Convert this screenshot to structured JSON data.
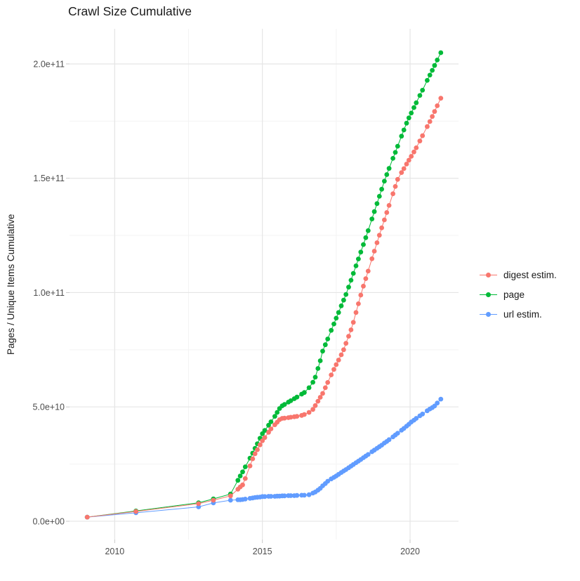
{
  "chart_data": {
    "type": "line",
    "title": "Crawl Size Cumulative",
    "xlabel": "",
    "ylabel": "Pages / Unique Items Cumulative",
    "legend_position": "right",
    "grid": true,
    "marker": "circle",
    "xlim": [
      2008.47,
      2021.64
    ],
    "ylim": [
      -8000000000.0,
      215350000000.0
    ],
    "x_major_ticks": [
      {
        "value": 2010,
        "label": "2010"
      },
      {
        "value": 2015,
        "label": "2015"
      },
      {
        "value": 2020,
        "label": "2020"
      }
    ],
    "x_minor_ticks": [
      2012.5,
      2017.5
    ],
    "y_major_ticks": [
      {
        "value": 0,
        "label": "0.0e+00"
      },
      {
        "value": 50000000000.0,
        "label": "5.0e+10"
      },
      {
        "value": 100000000000.0,
        "label": "1.0e+11"
      },
      {
        "value": 150000000000.0,
        "label": "1.5e+11"
      },
      {
        "value": 200000000000.0,
        "label": "2.0e+11"
      }
    ],
    "y_minor_ticks": [
      25000000000.0,
      75000000000.0,
      125000000000.0,
      175000000000.0
    ],
    "x_unit": "year (crawl date)",
    "y_unit": "cumulative count",
    "x": [
      2009.07,
      2010.72,
      2012.84,
      2013.34,
      2013.92,
      2014.17,
      2014.25,
      2014.33,
      2014.42,
      2014.58,
      2014.67,
      2014.75,
      2014.83,
      2014.92,
      2015.0,
      2015.08,
      2015.21,
      2015.29,
      2015.42,
      2015.5,
      2015.58,
      2015.67,
      2015.75,
      2015.88,
      2015.96,
      2016.08,
      2016.17,
      2016.33,
      2016.42,
      2016.58,
      2016.71,
      2016.79,
      2016.88,
      2016.96,
      2017.04,
      2017.13,
      2017.21,
      2017.33,
      2017.42,
      2017.5,
      2017.58,
      2017.67,
      2017.75,
      2017.83,
      2017.92,
      2018.0,
      2018.08,
      2018.17,
      2018.25,
      2018.33,
      2018.42,
      2018.5,
      2018.58,
      2018.71,
      2018.79,
      2018.88,
      2018.96,
      2019.04,
      2019.13,
      2019.21,
      2019.29,
      2019.42,
      2019.5,
      2019.58,
      2019.71,
      2019.79,
      2019.88,
      2019.96,
      2020.04,
      2020.13,
      2020.21,
      2020.33,
      2020.42,
      2020.58,
      2020.67,
      2020.75,
      2020.83,
      2020.92,
      2021.04
    ],
    "series": [
      {
        "name": "digest estim.",
        "color": "#F8766D",
        "values": [
          1800000000.0,
          4300000000.0,
          7700000000.0,
          9200000000.0,
          11100000000.0,
          14000000000.0,
          15000000000.0,
          15900000000.0,
          18700000000.0,
          24200000000.0,
          27300000000.0,
          29500000000.0,
          31300000000.0,
          33400000000.0,
          35200000000.0,
          36600000000.0,
          38900000000.0,
          40400000000.0,
          42200000000.0,
          43300000000.0,
          44400000000.0,
          45000000000.0,
          45100000000.0,
          45300000000.0,
          45500000000.0,
          45700000000.0,
          45900000000.0,
          46300000000.0,
          46700000000.0,
          47600000000.0,
          48900000000.0,
          50600000000.0,
          52500000000.0,
          54200000000.0,
          55900000000.0,
          58400000000.0,
          60700000000.0,
          64000000000.0,
          66400000000.0,
          68500000000.0,
          70500000000.0,
          72800000000.0,
          75000000000.0,
          77800000000.0,
          80900000000.0,
          83700000000.0,
          87000000000.0,
          91300000000.0,
          95100000000.0,
          98900000000.0,
          102800000000.0,
          106100000000.0,
          109400000000.0,
          114800000000.0,
          118100000000.0,
          121800000000.0,
          125100000000.0,
          128300000000.0,
          131800000000.0,
          135000000000.0,
          138100000000.0,
          143200000000.0,
          146400000000.0,
          149500000000.0,
          152500000000.0,
          154200000000.0,
          156200000000.0,
          157900000000.0,
          159600000000.0,
          161500000000.0,
          163300000000.0,
          166300000000.0,
          168600000000.0,
          172600000000.0,
          174800000000.0,
          177000000000.0,
          179200000000.0,
          181700000000.0,
          185000000000.0
        ]
      },
      {
        "name": "page",
        "color": "#00BA38",
        "values": [
          1800000000.0,
          4500000000.0,
          8100000000.0,
          9800000000.0,
          11900000000.0,
          17900000000.0,
          19800000000.0,
          21600000000.0,
          23800000000.0,
          27600000000.0,
          29800000000.0,
          31900000000.0,
          33900000000.0,
          36300000000.0,
          38300000000.0,
          39700000000.0,
          42000000000.0,
          43500000000.0,
          45900000000.0,
          47600000000.0,
          49300000000.0,
          50500000000.0,
          51100000000.0,
          52100000000.0,
          52700000000.0,
          53600000000.0,
          54300000000.0,
          55600000000.0,
          56300000000.0,
          58400000000.0,
          60800000000.0,
          63000000000.0,
          66800000000.0,
          70200000000.0,
          74400000000.0,
          77200000000.0,
          79700000000.0,
          83500000000.0,
          86300000000.0,
          88800000000.0,
          91300000000.0,
          94200000000.0,
          96700000000.0,
          99200000000.0,
          102400000000.0,
          105400000000.0,
          108400000000.0,
          111700000000.0,
          114700000000.0,
          117700000000.0,
          121000000000.0,
          124000000000.0,
          127100000000.0,
          132200000000.0,
          135400000000.0,
          138900000000.0,
          142100000000.0,
          145200000000.0,
          148700000000.0,
          151600000000.0,
          154300000000.0,
          158700000000.0,
          161300000000.0,
          164000000000.0,
          168400000000.0,
          171100000000.0,
          174100000000.0,
          176400000000.0,
          178500000000.0,
          180900000000.0,
          183000000000.0,
          186200000000.0,
          188500000000.0,
          192800000000.0,
          195100000000.0,
          197200000000.0,
          199300000000.0,
          201700000000.0,
          204900000000.0
        ]
      },
      {
        "name": "url estim.",
        "color": "#619CFF",
        "values": [
          1800000000.0,
          3700000000.0,
          6300000000.0,
          8000000000.0,
          9200000000.0,
          9400000000.0,
          9400000000.0,
          9500000000.0,
          9700000000.0,
          10000000000.0,
          10200000000.0,
          10400000000.0,
          10500000000.0,
          10600000000.0,
          10800000000.0,
          10800000000.0,
          10900000000.0,
          10900000000.0,
          10900000000.0,
          11000000000.0,
          11000000000.0,
          11100000000.0,
          11100000000.0,
          11200000000.0,
          11200000000.0,
          11200000000.0,
          11300000000.0,
          11400000000.0,
          11400000000.0,
          11600000000.0,
          12300000000.0,
          12800000000.0,
          13600000000.0,
          14400000000.0,
          15500000000.0,
          16500000000.0,
          17500000000.0,
          18500000000.0,
          19200000000.0,
          19800000000.0,
          20500000000.0,
          21300000000.0,
          22000000000.0,
          22600000000.0,
          23400000000.0,
          24100000000.0,
          24800000000.0,
          25600000000.0,
          26300000000.0,
          27000000000.0,
          27800000000.0,
          28500000000.0,
          29200000000.0,
          30400000000.0,
          31100000000.0,
          31900000000.0,
          32600000000.0,
          33300000000.0,
          34200000000.0,
          34900000000.0,
          35700000000.0,
          36900000000.0,
          37700000000.0,
          38500000000.0,
          39800000000.0,
          40600000000.0,
          41600000000.0,
          42400000000.0,
          43400000000.0,
          44200000000.0,
          45000000000.0,
          46100000000.0,
          46900000000.0,
          48300000000.0,
          49100000000.0,
          49700000000.0,
          50400000000.0,
          51700000000.0,
          53400000000.0
        ]
      }
    ]
  }
}
